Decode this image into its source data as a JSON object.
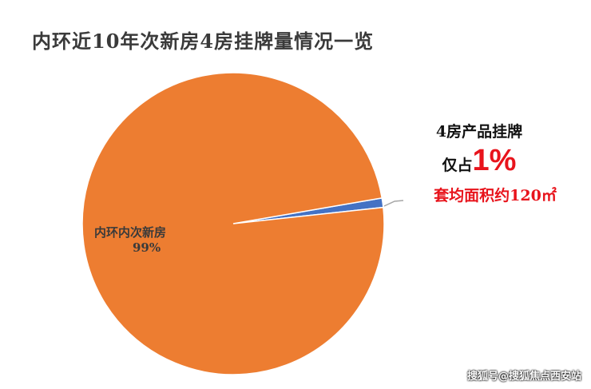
{
  "chart_data": {
    "type": "pie",
    "title": "内环近10年次新房4房挂牌量情况一览",
    "slices": [
      {
        "label": "内环内次新房",
        "value": 99,
        "value_label": "99%",
        "color": "#ed7d31"
      },
      {
        "label": "4房产品挂牌",
        "value": 1,
        "value_label": "1%",
        "color": "#4472c4"
      }
    ]
  },
  "annotation": {
    "line1": "4房产品挂牌",
    "line2_prefix": "仅占",
    "line2_value": "1%",
    "line3": "套均面积约120㎡"
  },
  "watermark": "搜狐号@搜狐焦点西安站"
}
